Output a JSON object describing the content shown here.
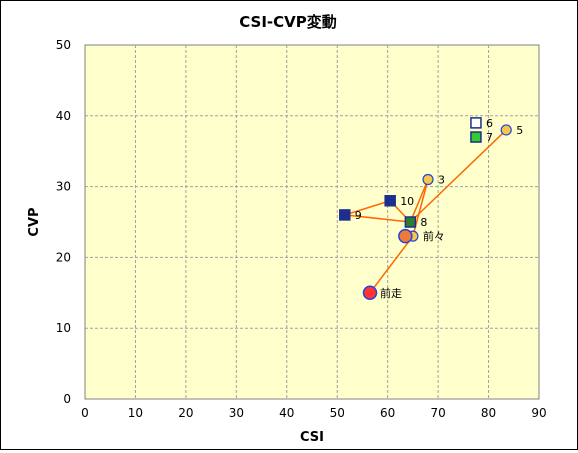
{
  "chart_data": {
    "type": "scatter",
    "title": "CSI-CVP変動",
    "xlabel": "CSI",
    "ylabel": "CVP",
    "xlim": [
      0,
      90
    ],
    "ylim": [
      0,
      50
    ],
    "x_ticks": [
      "0",
      "10",
      "20",
      "30",
      "40",
      "50",
      "60",
      "70",
      "80",
      "90"
    ],
    "y_ticks": [
      "0",
      "10",
      "20",
      "30",
      "40",
      "50"
    ],
    "grid": true,
    "colors": {
      "plot_background": "#ffffcc",
      "grid": "#a0a0a0",
      "line": "#ff6600",
      "navy": "#1c2f8f",
      "yellow": "#f7c64a",
      "green": "#33cc33",
      "darkgreen": "#2e7d32",
      "red": "#ff3333",
      "orange": "#f07a3c",
      "blue": "#2244dd",
      "white": "#ffffff"
    },
    "connector_order": [
      "前走",
      "前々",
      "3",
      "8",
      "9",
      "10",
      "8",
      "5"
    ],
    "points": [
      {
        "label": "前走",
        "x": 56.5,
        "y": 15,
        "marker": "circle-large",
        "fill": "#ff3333",
        "stroke": "#2244dd"
      },
      {
        "label": "前々",
        "x": 65,
        "y": 23,
        "marker": "circle",
        "fill": "#f7c64a",
        "stroke": "#2244dd"
      },
      {
        "label": "",
        "x": 63.5,
        "y": 23,
        "marker": "circle-large",
        "fill": "#f07a3c",
        "stroke": "#2244dd"
      },
      {
        "label": "3",
        "x": 68,
        "y": 31,
        "marker": "circle",
        "fill": "#f7c64a",
        "stroke": "#2244dd"
      },
      {
        "label": "5",
        "x": 83.5,
        "y": 38,
        "marker": "circle",
        "fill": "#f7c64a",
        "stroke": "#2244dd"
      },
      {
        "label": "6",
        "x": 77.5,
        "y": 39,
        "marker": "square",
        "fill": "#ffffff",
        "stroke": "#1c2f8f"
      },
      {
        "label": "7",
        "x": 77.5,
        "y": 37,
        "marker": "square",
        "fill": "#33cc33",
        "stroke": "#1c2f8f"
      },
      {
        "label": "8",
        "x": 64.5,
        "y": 25,
        "marker": "square",
        "fill": "#2e7d32",
        "stroke": "#1c2f8f"
      },
      {
        "label": "9",
        "x": 51.5,
        "y": 26,
        "marker": "square",
        "fill": "#1c2f8f",
        "stroke": "#1c2f8f"
      },
      {
        "label": "10",
        "x": 60.5,
        "y": 28,
        "marker": "square",
        "fill": "#1c2f8f",
        "stroke": "#1c2f8f"
      }
    ]
  }
}
